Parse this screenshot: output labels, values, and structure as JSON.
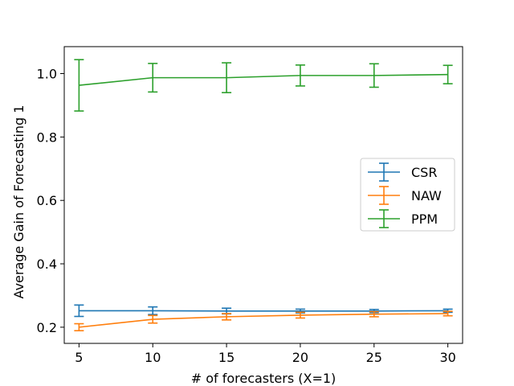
{
  "chart_data": {
    "type": "line",
    "title": "",
    "xlabel": "# of forecasters (X=1)",
    "ylabel": "Average Gain of Forecasting 1",
    "x": [
      5,
      10,
      15,
      20,
      25,
      30
    ],
    "xlim": [
      4.0,
      31.0
    ],
    "ylim": [
      0.149,
      1.085
    ],
    "xticks": [
      5,
      10,
      15,
      20,
      25,
      30
    ],
    "yticks": [
      0.2,
      0.4,
      0.6,
      0.8,
      1.0
    ],
    "ytick_labels": [
      "0.2",
      "0.4",
      "0.6",
      "0.8",
      "1.0"
    ],
    "grid": false,
    "legend_position": "center-right",
    "series": [
      {
        "name": "CSR",
        "color": "#1f77b4",
        "values": [
          0.252,
          0.252,
          0.251,
          0.251,
          0.251,
          0.252
        ],
        "err": [
          0.018,
          0.012,
          0.009,
          0.006,
          0.005,
          0.005
        ]
      },
      {
        "name": "NAW",
        "color": "#ff7f0e",
        "values": [
          0.2,
          0.225,
          0.233,
          0.238,
          0.241,
          0.243
        ],
        "err": [
          0.011,
          0.012,
          0.01,
          0.009,
          0.008,
          0.007
        ]
      },
      {
        "name": "PPM",
        "color": "#2ca02c",
        "values": [
          0.963,
          0.987,
          0.987,
          0.994,
          0.994,
          0.997
        ],
        "err": [
          0.081,
          0.045,
          0.047,
          0.033,
          0.037,
          0.029
        ]
      }
    ]
  }
}
